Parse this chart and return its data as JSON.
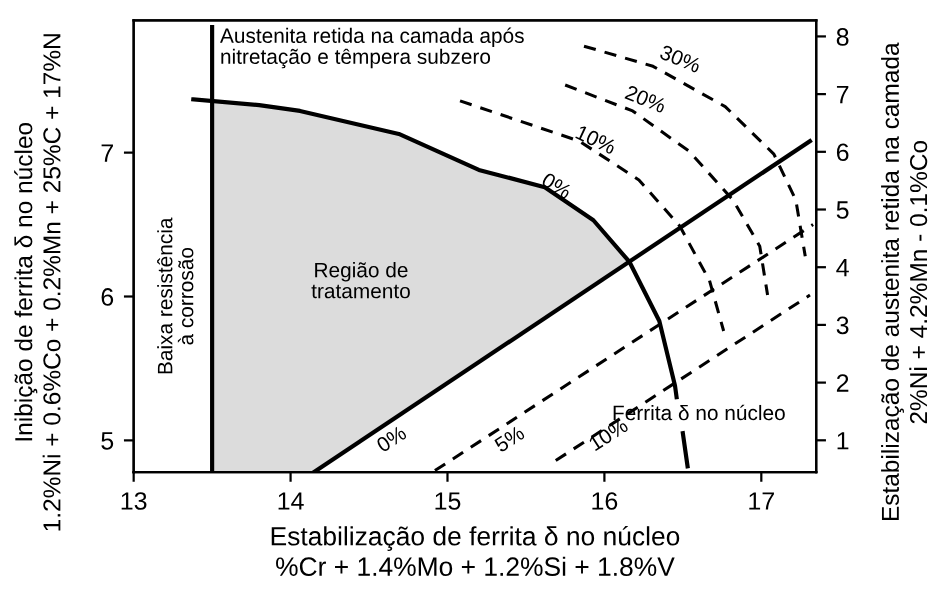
{
  "chart_data": {
    "type": "line",
    "xlabel": "Estabilização de ferrita δ no núcleo\n%Cr + 1.4%Mo + 1.2%Si + 1.8%V",
    "ylabel": "Inibição de ferrita δ no núcleo\n1.2%Ni + 0.6%Co + 0.2%Mn + 25%C + 17%N",
    "y2label": "Estabilização de austenita retida na camada\n2%Ni + 4.2%Mn - 0.1%Co",
    "xlim": [
      13,
      17.35
    ],
    "xticks": [
      13,
      14,
      15,
      16,
      17
    ],
    "ylim": [
      4.78,
      7.92
    ],
    "yticks": [
      5,
      6,
      7
    ],
    "y2lim": [
      0.45,
      8.28
    ],
    "y2ticks": [
      1,
      2,
      3,
      4,
      5,
      6,
      7,
      8
    ],
    "grid": false,
    "marker": "none",
    "series": [
      {
        "type": "area",
        "color": "#dcdcdc",
        "x": [
          13.5,
          14.06,
          14.69,
          15.2,
          15.62,
          15.93,
          16.16
        ],
        "values": [
          7.36,
          7.29,
          7.13,
          6.88,
          6.76,
          6.53,
          6.24
        ]
      },
      {
        "color": "#000000",
        "line_style": "solid",
        "x": [
          13.38,
          13.8,
          14.06,
          14.69,
          15.2,
          15.62,
          15.93,
          16.16,
          16.35,
          16.45,
          16.46
        ],
        "values": [
          7.37,
          7.33,
          7.29,
          7.13,
          6.88,
          6.76,
          6.53,
          6.24,
          5.83,
          5.38,
          5.3
        ]
      },
      {
        "color": "#000000",
        "line_style": "solid",
        "x": [
          16.5,
          16.53
        ],
        "values": [
          5.05,
          4.82
        ]
      },
      {
        "color": "#000000",
        "line_style": "solid",
        "x": [
          14.15,
          17.31
        ],
        "values": [
          4.78,
          7.08
        ]
      },
      {
        "color": "#000000",
        "line_style": "dashed",
        "x": [
          14.92,
          17.33
        ],
        "values": [
          4.79,
          6.5
        ]
      },
      {
        "color": "#000000",
        "line_style": "dashed",
        "x": [
          15.69,
          17.31
        ],
        "values": [
          4.86,
          6.01
        ]
      },
      {
        "color": "#000000",
        "line_style": "dashed",
        "x": [
          15.08,
          15.84,
          16.22,
          16.48,
          16.67,
          16.76
        ],
        "values": [
          7.36,
          7.08,
          6.81,
          6.49,
          6.11,
          5.76
        ]
      },
      {
        "color": "#000000",
        "line_style": "dashed",
        "x": [
          15.75,
          16.18,
          16.54,
          16.82,
          16.99,
          17.04
        ],
        "values": [
          7.47,
          7.29,
          7.01,
          6.67,
          6.35,
          6.01
        ]
      },
      {
        "color": "#000000",
        "line_style": "dashed",
        "x": [
          15.87,
          16.31,
          16.77,
          17.08,
          17.22,
          17.28
        ],
        "values": [
          7.74,
          7.6,
          7.32,
          6.99,
          6.67,
          6.28
        ]
      }
    ],
    "ref_lines": [
      {
        "axis": "x",
        "value": 13.5,
        "color": "#000000",
        "line_style": "solid"
      }
    ],
    "annotations": [
      {
        "text": "Austenita retida na camada após\nnitretação e têmpera subzero",
        "x": 13.55,
        "y": 7.87
      },
      "Baixa resistência\nà corrosão",
      "Região de\ntratamento",
      "Ferrita δ no núcleo",
      "30%",
      "20%",
      {
        "text": "10%",
        "x": 15.94,
        "y": 7.08
      },
      {
        "text": "0%",
        "x": 15.69,
        "y": 6.76
      },
      "0%",
      "5%",
      {
        "text": "10%",
        "x": 16.03,
        "y": 5.03
      }
    ]
  }
}
